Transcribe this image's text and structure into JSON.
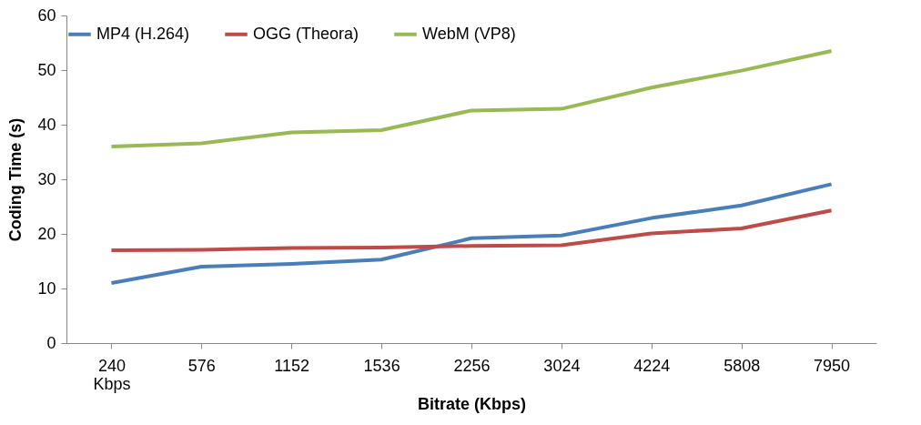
{
  "chart_data": {
    "type": "line",
    "xlabel": "Bitrate (Kbps)",
    "ylabel": "Coding Time (s)",
    "categories": [
      "240 Kbps",
      "576",
      "1152",
      "1536",
      "2256",
      "3024",
      "4224",
      "5808",
      "7950"
    ],
    "series": [
      {
        "name": "MP4 (H.264)",
        "color": "#4a7ebb",
        "values": [
          11,
          14,
          14.5,
          15.3,
          19.2,
          19.7,
          22.9,
          25.2,
          29.1
        ]
      },
      {
        "name": "OGG (Theora)",
        "color": "#be4b48",
        "values": [
          17,
          17.1,
          17.4,
          17.5,
          17.8,
          17.9,
          20.1,
          21,
          24.3
        ]
      },
      {
        "name": "WebM (VP8)",
        "color": "#98b954",
        "values": [
          36,
          36.6,
          38.6,
          39,
          42.6,
          42.9,
          46.8,
          49.9,
          53.5
        ]
      }
    ],
    "ylim": [
      0,
      60
    ],
    "yticks": [
      0,
      10,
      20,
      30,
      40,
      50,
      60
    ],
    "grid": false,
    "legend": "top",
    "marker": "none",
    "line_style": "solid"
  }
}
